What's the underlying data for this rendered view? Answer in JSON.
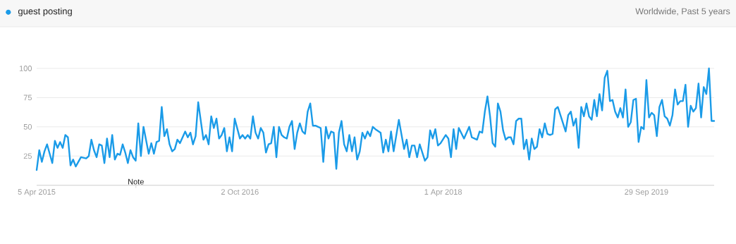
{
  "chart_data": {
    "type": "line",
    "subtitle": "Worldwide, Past 5 years",
    "x": [
      "2015-04-05",
      "2015-04-12",
      "2015-04-19",
      "2015-04-26",
      "2015-05-03",
      "2015-05-17",
      "2015-05-24",
      "2015-05-31",
      "2015-06-07",
      "2015-06-14",
      "2015-06-21",
      "2015-06-28",
      "2015-07-05",
      "2015-07-12",
      "2015-07-19",
      "2015-08-02",
      "2015-08-16",
      "2015-08-23",
      "2015-08-30",
      "2015-09-06",
      "2015-09-13",
      "2015-09-20",
      "2015-09-27",
      "2015-10-04",
      "2015-10-11",
      "2015-10-18",
      "2015-10-25",
      "2015-11-01",
      "2015-11-08",
      "2015-11-15",
      "2015-11-22",
      "2015-11-29",
      "2015-12-06",
      "2015-12-13",
      "2015-12-20",
      "2015-12-27",
      "2016-01-03",
      "2016-01-10",
      "2016-01-17",
      "2016-01-31",
      "2016-02-07",
      "2016-02-14",
      "2016-02-21",
      "2016-02-28",
      "2016-03-06",
      "2016-03-13",
      "2016-03-20",
      "2016-03-27",
      "2016-04-03",
      "2016-04-10",
      "2016-04-17",
      "2016-04-24",
      "2016-05-08",
      "2016-05-15",
      "2016-05-22",
      "2016-05-29",
      "2016-06-05",
      "2016-06-12",
      "2016-06-26",
      "2016-07-03",
      "2016-07-10",
      "2016-07-17",
      "2016-07-24",
      "2016-07-31",
      "2016-08-07",
      "2016-08-14",
      "2016-08-21",
      "2016-08-28",
      "2016-09-04",
      "2016-09-11",
      "2016-09-18",
      "2016-10-02",
      "2016-10-09",
      "2016-10-16",
      "2016-10-23",
      "2016-10-30",
      "2016-11-06",
      "2016-11-13",
      "2016-11-20",
      "2016-11-27",
      "2016-12-04",
      "2016-12-11",
      "2016-12-18",
      "2016-12-25",
      "2017-01-01",
      "2017-01-08",
      "2017-01-15",
      "2017-01-22",
      "2017-01-29",
      "2017-02-05",
      "2017-02-12",
      "2017-02-19",
      "2017-02-26",
      "2017-03-05",
      "2017-03-12",
      "2017-03-19",
      "2017-03-26",
      "2017-04-02",
      "2017-04-09",
      "2017-04-16",
      "2017-04-23",
      "2017-04-30",
      "2017-05-07",
      "2017-05-14",
      "2017-05-21",
      "2017-05-28",
      "2017-06-04",
      "2017-06-11",
      "2017-06-18",
      "2017-06-25",
      "2017-07-02",
      "2017-07-09",
      "2017-07-16",
      "2017-07-23",
      "2017-07-30",
      "2017-08-06",
      "2017-08-13",
      "2017-08-20",
      "2017-08-27",
      "2017-09-03",
      "2017-09-10",
      "2017-09-17",
      "2017-09-24",
      "2017-10-01",
      "2017-10-15",
      "2017-10-22",
      "2017-10-29",
      "2017-11-05",
      "2017-11-12",
      "2017-11-19",
      "2017-12-03",
      "2017-12-17",
      "2017-12-24",
      "2017-12-31",
      "2018-01-07",
      "2018-01-14",
      "2018-01-21",
      "2018-01-28",
      "2018-02-11",
      "2018-02-18",
      "2018-02-25",
      "2018-03-04",
      "2018-03-11",
      "2018-03-18",
      "2018-03-25",
      "2018-04-08",
      "2018-04-15",
      "2018-04-22",
      "2018-04-29",
      "2018-05-06",
      "2018-05-13",
      "2018-05-27",
      "2018-06-10",
      "2018-06-17",
      "2018-06-24",
      "2018-07-01",
      "2018-07-08",
      "2018-07-15",
      "2018-07-22",
      "2018-07-29",
      "2018-08-05",
      "2018-08-12",
      "2018-08-19",
      "2018-08-26",
      "2018-09-02",
      "2018-09-09",
      "2018-09-16",
      "2018-09-23",
      "2018-09-30",
      "2018-10-07",
      "2018-10-14",
      "2018-10-21",
      "2018-10-28",
      "2018-11-04",
      "2018-11-11",
      "2018-11-18",
      "2018-11-25",
      "2018-12-02",
      "2018-12-09",
      "2018-12-16",
      "2018-12-23",
      "2018-12-30",
      "2019-01-06",
      "2019-01-13",
      "2019-01-20",
      "2019-01-27",
      "2019-02-03",
      "2019-02-24",
      "2019-03-03",
      "2019-03-10",
      "2019-03-17",
      "2019-03-24",
      "2019-03-31",
      "2019-04-07",
      "2019-04-14",
      "2019-04-21",
      "2019-04-28",
      "2019-05-05",
      "2019-05-12",
      "2019-05-19",
      "2019-05-26",
      "2019-06-02",
      "2019-06-09",
      "2019-06-16",
      "2019-06-23",
      "2019-06-30",
      "2019-07-07",
      "2019-07-14",
      "2019-07-21",
      "2019-07-28",
      "2019-08-04",
      "2019-08-11",
      "2019-08-18",
      "2019-08-25",
      "2019-09-01",
      "2019-09-08",
      "2019-09-15",
      "2019-09-22",
      "2019-09-29",
      "2019-10-06",
      "2019-10-13",
      "2019-10-20",
      "2019-10-27",
      "2019-11-03",
      "2019-11-10",
      "2019-11-17",
      "2019-11-24",
      "2019-12-01",
      "2019-12-08",
      "2019-12-15",
      "2019-12-22",
      "2019-12-29",
      "2020-01-05",
      "2020-01-12",
      "2020-01-19",
      "2020-01-26",
      "2020-02-02",
      "2020-02-09",
      "2020-02-16",
      "2020-02-23",
      "2020-03-01",
      "2020-03-08",
      "2020-03-15",
      "2020-03-22",
      "2020-03-29"
    ],
    "series": [
      {
        "name": "guest posting",
        "color": "#1a9be8",
        "values": [
          13,
          30,
          20,
          29,
          35,
          19,
          38,
          32,
          37,
          32,
          43,
          41,
          17,
          22,
          16,
          24,
          23,
          25,
          39,
          30,
          24,
          35,
          34,
          19,
          40,
          24,
          43,
          22,
          27,
          26,
          35,
          28,
          19,
          30,
          24,
          21,
          53,
          25,
          50,
          27,
          36,
          27,
          37,
          38,
          67,
          42,
          48,
          35,
          29,
          31,
          39,
          36,
          46,
          41,
          45,
          35,
          42,
          71,
          39,
          43,
          35,
          59,
          49,
          57,
          40,
          43,
          49,
          29,
          41,
          29,
          57,
          40,
          43,
          40,
          43,
          40,
          59,
          45,
          40,
          49,
          45,
          28,
          35,
          36,
          50,
          24,
          50,
          43,
          41,
          40,
          50,
          55,
          31,
          45,
          53,
          46,
          44,
          63,
          70,
          51,
          51,
          50,
          49,
          20,
          50,
          40,
          46,
          45,
          14,
          45,
          55,
          35,
          29,
          43,
          29,
          41,
          22,
          29,
          45,
          40,
          46,
          42,
          50,
          48,
          45,
          28,
          39,
          29,
          46,
          29,
          56,
          31,
          39,
          24,
          34,
          34,
          24,
          35,
          21,
          24,
          47,
          40,
          48,
          34,
          36,
          43,
          40,
          24,
          48,
          31,
          49,
          40,
          50,
          41,
          40,
          39,
          46,
          45,
          63,
          76,
          59,
          36,
          33,
          70,
          63,
          47,
          39,
          41,
          41,
          35,
          55,
          57,
          57,
          31,
          39,
          22,
          40,
          31,
          33,
          48,
          41,
          53,
          44,
          43,
          44,
          65,
          67,
          46,
          60,
          63,
          51,
          57,
          32,
          67,
          59,
          70,
          59,
          56,
          73,
          59,
          78,
          64,
          92,
          98,
          72,
          73,
          63,
          58,
          66,
          58,
          82,
          50,
          54,
          73,
          74,
          37,
          50,
          48,
          90,
          58,
          62,
          60,
          42,
          67,
          73,
          59,
          57,
          51,
          60,
          82,
          69,
          72,
          72,
          86,
          50,
          68,
          63,
          66,
          87,
          58,
          84,
          78,
          100,
          55,
          55
        ]
      }
    ],
    "xlim": [
      "2015-04-05",
      "2020-03-29"
    ],
    "xticks": [
      {
        "value": "2015-04-05",
        "label": "5 Apr 2015"
      },
      {
        "value": "2016-10-02",
        "label": "2 Oct 2016"
      },
      {
        "value": "2018-04-01",
        "label": "1 Apr 2018"
      },
      {
        "value": "2019-09-29",
        "label": "29 Sep 2019"
      }
    ],
    "ylim": [
      0,
      100
    ],
    "yticks": [
      25,
      50,
      75,
      100
    ],
    "annotations": [
      "Note"
    ],
    "grid": "y",
    "legend": "top left",
    "marker": "none",
    "line_style": "solid"
  }
}
